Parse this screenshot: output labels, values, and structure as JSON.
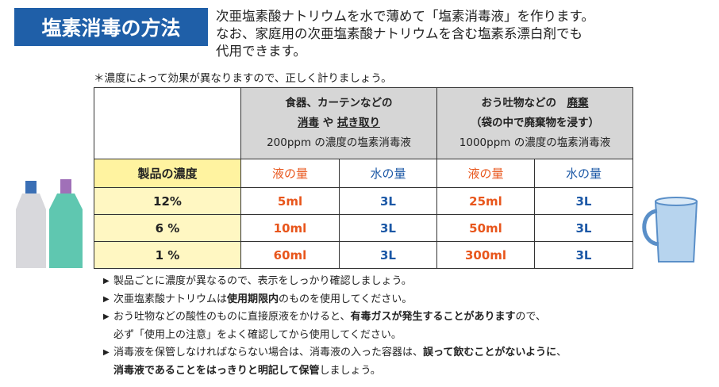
{
  "header": {
    "title": "塩素消毒の方法",
    "intro": [
      "次亜塩素酸ナトリウムを水で薄めて「塩素消毒液」を作ります。",
      "なお、家庭用の次亜塩素酸ナトリウムを含む塩素系漂白剤でも",
      "代用できます。"
    ],
    "note": "＊濃度によって効果が異なりますので、正しく計りましょう。"
  },
  "table": {
    "groups": [
      {
        "lines": [
          [
            {
              "text": "食器、カーテンなどの",
              "bold": true
            }
          ],
          [
            {
              "text": "消毒",
              "bold": true,
              "underline": true
            },
            {
              "text": " や ",
              "bold": true
            },
            {
              "text": "拭き取り",
              "bold": true,
              "underline": true
            }
          ],
          [
            {
              "text": "200ppm の濃度の塩素消毒液"
            }
          ]
        ]
      },
      {
        "lines": [
          [
            {
              "text": "おう吐物などの　",
              "bold": true
            },
            {
              "text": "廃棄",
              "bold": true,
              "underline": true
            }
          ],
          [
            {
              "text": "（袋の中で廃棄物を浸す）",
              "bold": true
            }
          ],
          [
            {
              "text": "1000ppm の濃度の塩素消毒液"
            }
          ]
        ]
      }
    ],
    "subheader": [
      "製品の濃度",
      "液の量",
      "水の量",
      "液の量",
      "水の量"
    ],
    "rows": [
      [
        "12%",
        "5ml",
        "3L",
        "25ml",
        "3L"
      ],
      [
        "6 %",
        "10ml",
        "3L",
        "50ml",
        "3L"
      ],
      [
        "1 %",
        "60ml",
        "3L",
        "300ml",
        "3L"
      ]
    ]
  },
  "notes": [
    {
      "lines": [
        [
          {
            "text": "製品ごとに濃度が異なるので、表示をしっかり確認しましょう。"
          }
        ]
      ]
    },
    {
      "lines": [
        [
          {
            "text": "次亜塩素酸ナトリウムは"
          },
          {
            "text": "使用期限内",
            "bold": true
          },
          {
            "text": "のものを使用してください。"
          }
        ]
      ]
    },
    {
      "lines": [
        [
          {
            "text": "おう吐物などの酸性のものに直接原液をかけると、"
          },
          {
            "text": "有毒ガスが発生することがあります",
            "bold": true
          },
          {
            "text": "ので、"
          }
        ],
        [
          {
            "text": "必ず「使用上の注意」をよく確認してから使用してください。"
          }
        ]
      ]
    },
    {
      "lines": [
        [
          {
            "text": "消毒液を保管しなければならない場合は、消毒液の入った容器は、"
          },
          {
            "text": "誤って飲むことがないように",
            "bold": true
          },
          {
            "text": "、"
          }
        ],
        [
          {
            "text": "消毒液であることをはっきりと明記して保管",
            "bold": true
          },
          {
            "text": "しましょう。"
          }
        ]
      ]
    }
  ]
}
